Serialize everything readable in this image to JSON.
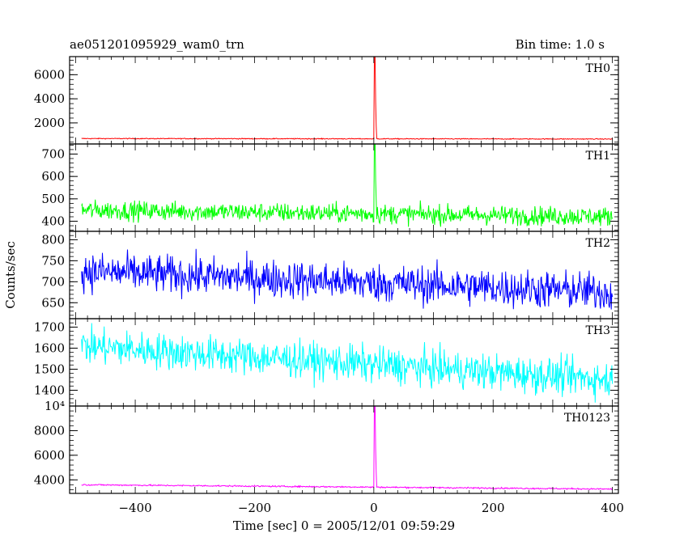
{
  "header": {
    "title": "ae051201095929_wam0_trn",
    "bin_time": "Bin time: 1.0 s"
  },
  "axes": {
    "xlabel": "Time [sec] 0 = 2005/12/01 09:59:29",
    "ylabel": "Counts/sec"
  },
  "chart_data": {
    "type": "line",
    "xlim": [
      -510,
      410
    ],
    "x_ticks": [
      -400,
      -200,
      0,
      200,
      400
    ],
    "x_tick_labels": [
      "−400",
      "−200",
      "0",
      "200",
      "400"
    ],
    "grid": false,
    "panels": [
      {
        "name": "TH0",
        "color": "#ff0000",
        "ylim": [
          250,
          7500
        ],
        "y_ticks": [
          2000,
          4000,
          6000
        ],
        "y_tick_labels": [
          "2000",
          "4000",
          "6000"
        ],
        "baseline": 700,
        "trend": -40,
        "noise": 25,
        "peak": {
          "x": 1,
          "y": 7500
        }
      },
      {
        "name": "TH1",
        "color": "#00ff00",
        "ylim": [
          355,
          745
        ],
        "y_ticks": [
          400,
          500,
          600,
          700
        ],
        "y_tick_labels": [
          "400",
          "500",
          "600",
          "700"
        ],
        "baseline": 450,
        "trend": -30,
        "noise": 30,
        "peak": {
          "x": 1,
          "y": 745
        }
      },
      {
        "name": "TH2",
        "color": "#0000ff",
        "ylim": [
          612,
          820
        ],
        "y_ticks": [
          650,
          700,
          750,
          800
        ],
        "y_tick_labels": [
          "650",
          "700",
          "750",
          "800"
        ],
        "baseline": 725,
        "trend": -50,
        "noise": 32,
        "peak": null
      },
      {
        "name": "TH3",
        "color": "#00ffff",
        "ylim": [
          1325,
          1740
        ],
        "y_ticks": [
          1400,
          1500,
          1600,
          1700
        ],
        "y_tick_labels": [
          "1400",
          "1500",
          "1600",
          "1700"
        ],
        "baseline": 1610,
        "trend": -160,
        "noise": 60,
        "peak": null
      },
      {
        "name": "TH0123",
        "color": "#ff00ff",
        "ylim": [
          2900,
          10000
        ],
        "y_ticks": [
          4000,
          6000,
          8000,
          10000
        ],
        "y_tick_labels": [
          "4000",
          "6000",
          "8000",
          "10⁴"
        ],
        "baseline": 3600,
        "trend": -350,
        "noise": 40,
        "peak": {
          "x": 1,
          "y": 10000
        }
      }
    ]
  }
}
